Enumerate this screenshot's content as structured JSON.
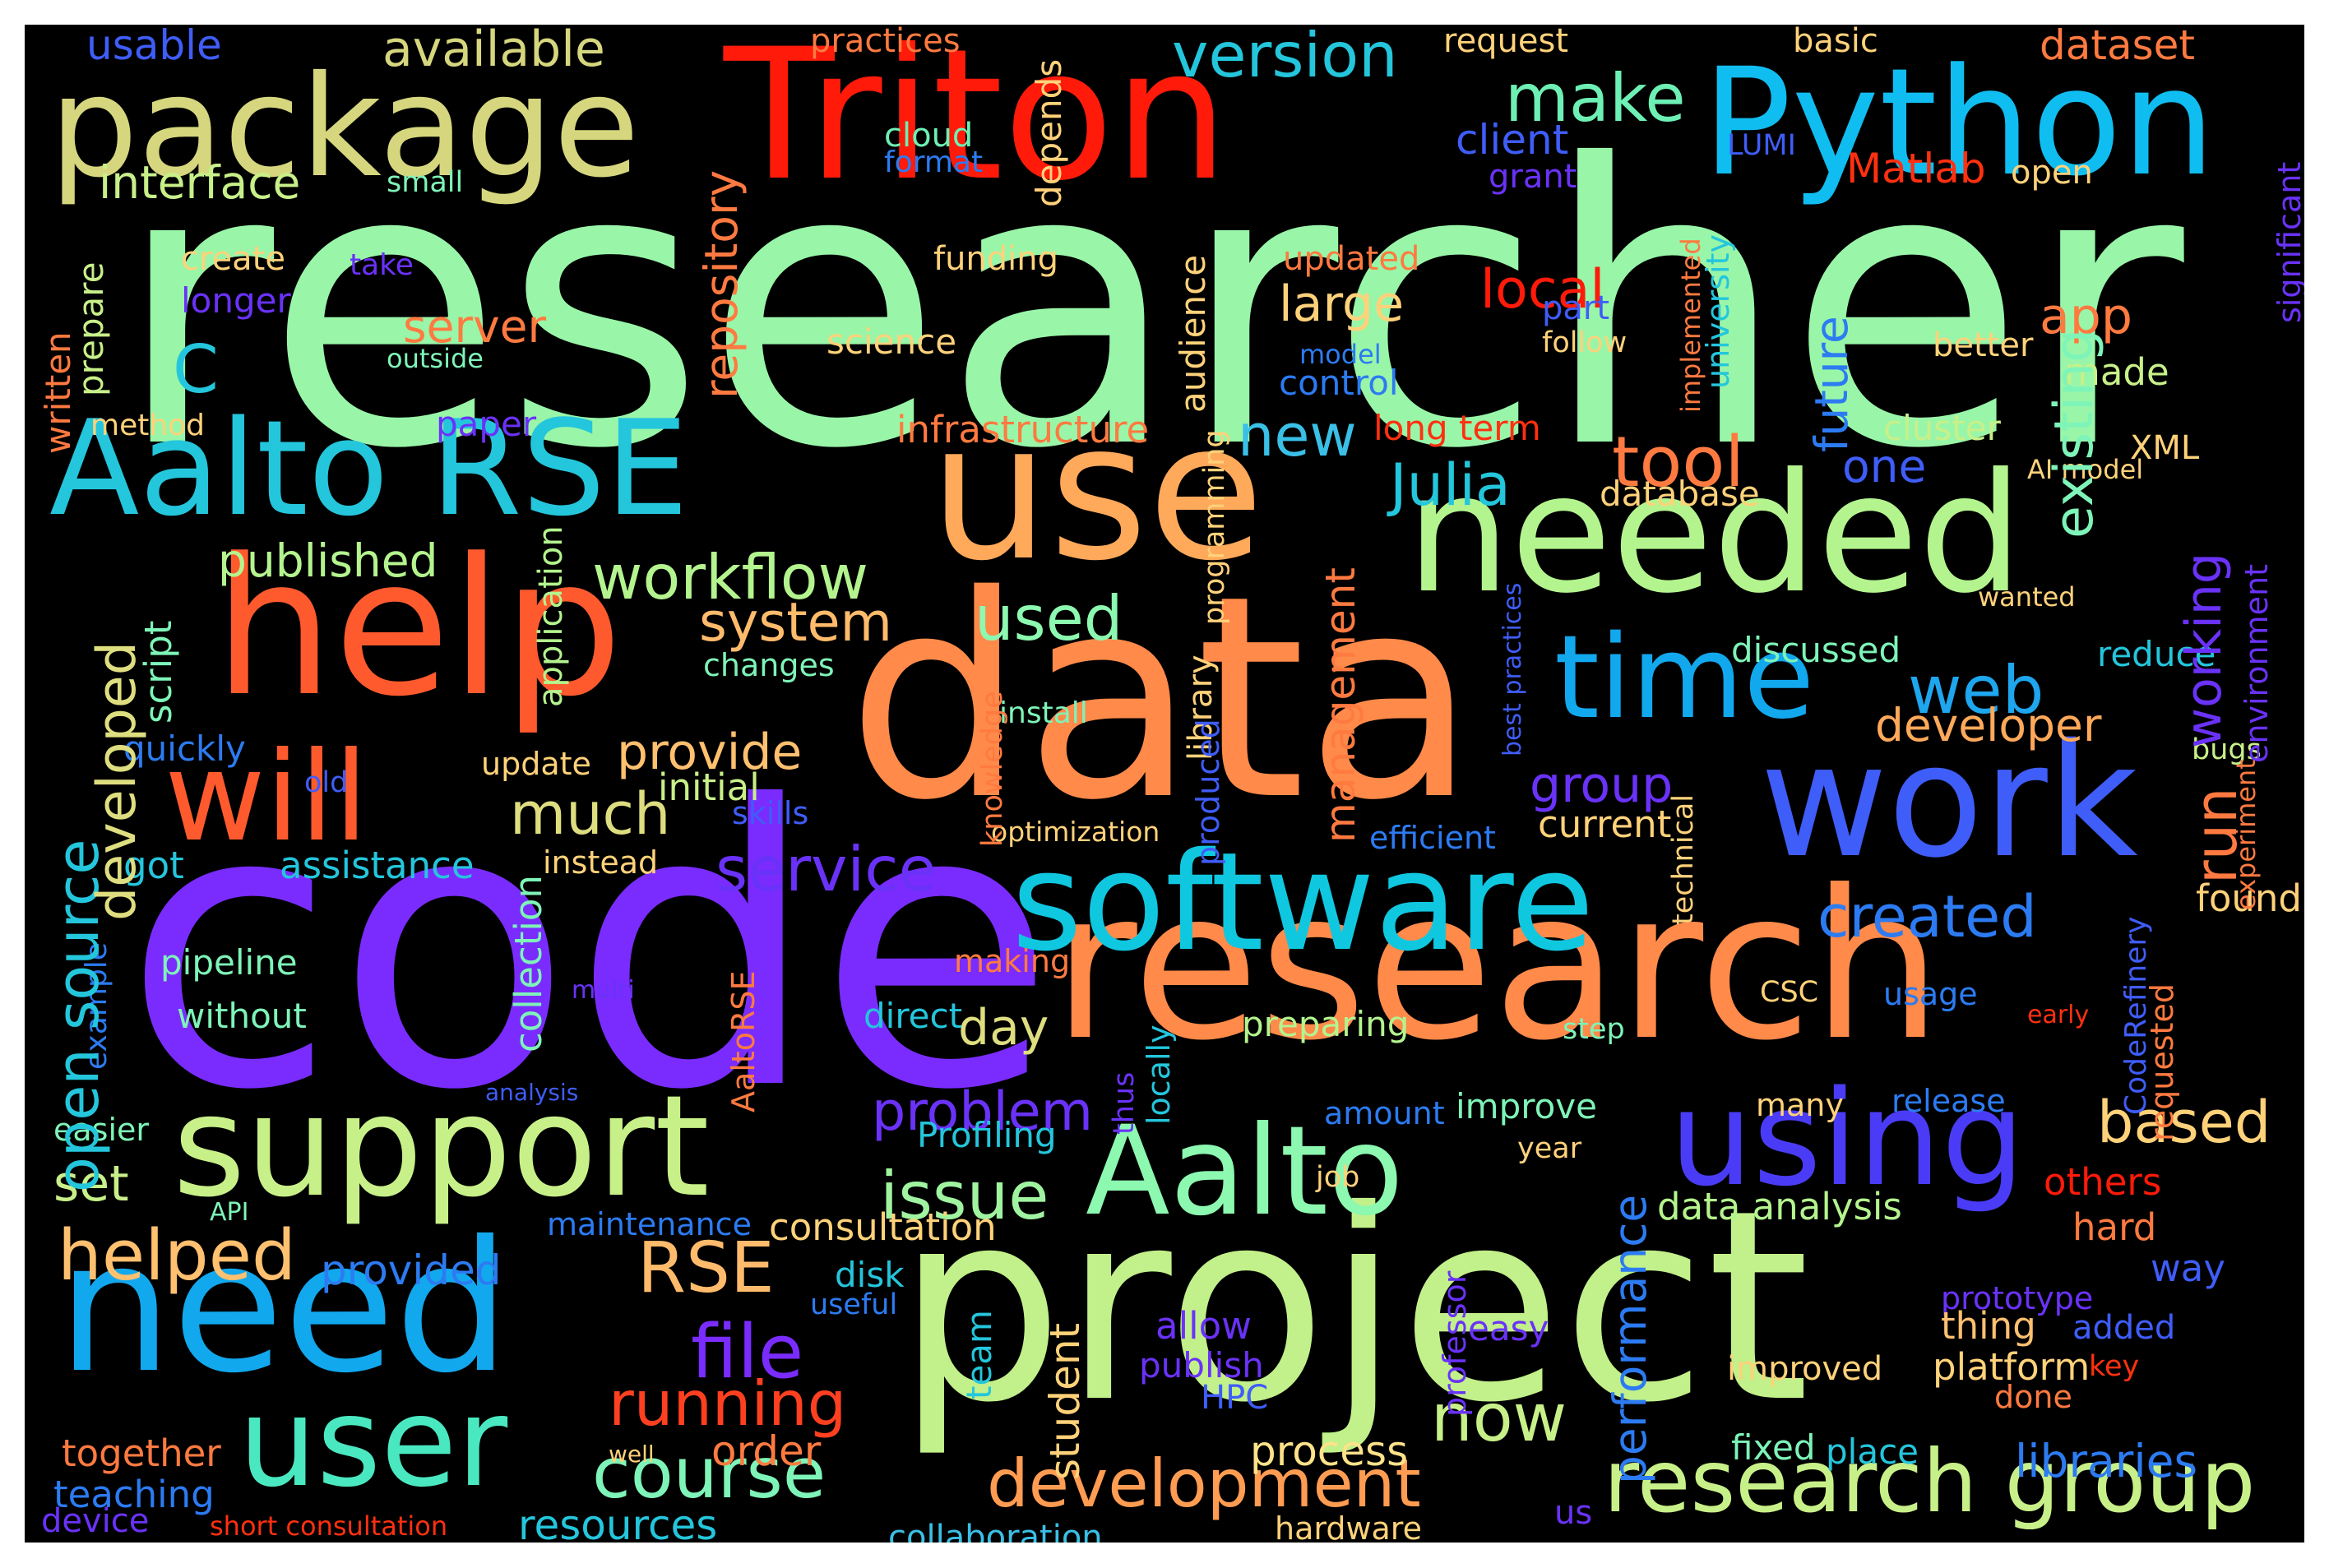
{
  "words": [
    {
      "text": "researcher",
      "color": "#99f6a8"
    },
    {
      "text": "code",
      "color": "#7a2cff"
    },
    {
      "text": "data",
      "color": "#ff8a4a"
    },
    {
      "text": "project",
      "color": "#c2f08a"
    },
    {
      "text": "research",
      "color": "#ff8a4a"
    },
    {
      "text": "Triton",
      "color": "#ff1a0a"
    },
    {
      "text": "Python",
      "color": "#10bdf0"
    },
    {
      "text": "package",
      "color": "#d6d67e"
    },
    {
      "text": "use",
      "color": "#ffa95a"
    },
    {
      "text": "needed",
      "color": "#b4f48e"
    },
    {
      "text": "help",
      "color": "#ff5a2e"
    },
    {
      "text": "support",
      "color": "#c8f089"
    },
    {
      "text": "need",
      "color": "#12a8ee"
    },
    {
      "text": "work",
      "color": "#3f5df8"
    },
    {
      "text": "software",
      "color": "#10c7e0"
    },
    {
      "text": "Aalto RSE",
      "color": "#24c6dc"
    },
    {
      "text": "using",
      "color": "#4a3cf6"
    },
    {
      "text": "Aalto",
      "color": "#8cf8b0"
    },
    {
      "text": "user",
      "color": "#4ae8c0"
    },
    {
      "text": "will",
      "color": "#ff5a2e"
    },
    {
      "text": "time",
      "color": "#12a8ee"
    },
    {
      "text": "research group",
      "color": "#c8f089"
    },
    {
      "text": "development",
      "color": "#ff9c52"
    },
    {
      "text": "course",
      "color": "#7ef4b8"
    },
    {
      "text": "RSE",
      "color": "#ffbb6c"
    },
    {
      "text": "file",
      "color": "#7a2cff"
    },
    {
      "text": "tool",
      "color": "#ff7a40"
    },
    {
      "text": "workflow",
      "color": "#b4f48e"
    },
    {
      "text": "now",
      "color": "#c8f089"
    },
    {
      "text": "version",
      "color": "#24c6dc"
    },
    {
      "text": "make",
      "color": "#6ef0b4"
    },
    {
      "text": "running",
      "color": "#ff4020"
    },
    {
      "text": "service",
      "color": "#6a32f8"
    },
    {
      "text": "system",
      "color": "#ffbb6c"
    },
    {
      "text": "used",
      "color": "#8cf8b0"
    },
    {
      "text": "web",
      "color": "#1ea6ee"
    },
    {
      "text": "problem",
      "color": "#6a32f8"
    },
    {
      "text": "issue",
      "color": "#a0f4a0"
    },
    {
      "text": "helped",
      "color": "#ffc070"
    },
    {
      "text": "much",
      "color": "#dede80"
    },
    {
      "text": "created",
      "color": "#2c7bf2"
    },
    {
      "text": "based",
      "color": "#ffd27a"
    },
    {
      "text": "Julia",
      "color": "#24c6dc"
    },
    {
      "text": "local",
      "color": "#ff1a0a"
    },
    {
      "text": "new",
      "color": "#3ac0e6"
    },
    {
      "text": "available",
      "color": "#d6d67e"
    },
    {
      "text": "interface",
      "color": "#c8f089"
    },
    {
      "text": "published",
      "color": "#b4f48e"
    },
    {
      "text": "provide",
      "color": "#ffc070"
    },
    {
      "text": "group",
      "color": "#6a32f8"
    },
    {
      "text": "developer",
      "color": "#ffa95a"
    },
    {
      "text": "libraries",
      "color": "#2c7bf2"
    },
    {
      "text": "order",
      "color": "#ff7a40"
    },
    {
      "text": "process",
      "color": "#ffe28a"
    },
    {
      "text": "resources",
      "color": "#24c6dc"
    },
    {
      "text": "collaboration",
      "color": "#3ac0e6"
    },
    {
      "text": "consultation",
      "color": "#ffd27a"
    },
    {
      "text": "data analysis",
      "color": "#b4f48e"
    },
    {
      "text": "set",
      "color": "#c8f089"
    },
    {
      "text": "day",
      "color": "#dede80"
    },
    {
      "text": "provided",
      "color": "#2c7bf2"
    },
    {
      "text": "teaching",
      "color": "#2c7bf2"
    },
    {
      "text": "together",
      "color": "#ff7a40"
    },
    {
      "text": "device",
      "color": "#6a32f8"
    },
    {
      "text": "short consultation",
      "color": "#ff3010"
    },
    {
      "text": "usable",
      "color": "#3f5df8"
    },
    {
      "text": "practices",
      "color": "#ff7a40"
    },
    {
      "text": "request",
      "color": "#ffd27a"
    },
    {
      "text": "basic",
      "color": "#ffd27a"
    },
    {
      "text": "dataset",
      "color": "#ff7a40"
    },
    {
      "text": "cloud",
      "color": "#6ef0b4"
    },
    {
      "text": "format",
      "color": "#2c7bf2"
    },
    {
      "text": "client",
      "color": "#3f5df8"
    },
    {
      "text": "grant",
      "color": "#6a32f8"
    },
    {
      "text": "LUMI",
      "color": "#3f5df8"
    },
    {
      "text": "Matlab",
      "color": "#ff3010"
    },
    {
      "text": "open",
      "color": "#ffd27a"
    },
    {
      "text": "small",
      "color": "#7ef4b8"
    },
    {
      "text": "create",
      "color": "#ffd27a"
    },
    {
      "text": "take",
      "color": "#6a32f8"
    },
    {
      "text": "longer",
      "color": "#6a32f8"
    },
    {
      "text": "funding",
      "color": "#ffd27a"
    },
    {
      "text": "updated",
      "color": "#ff7a40"
    },
    {
      "text": "large",
      "color": "#ffd27a"
    },
    {
      "text": "part",
      "color": "#3f5df8"
    },
    {
      "text": "follow",
      "color": "#ffd27a"
    },
    {
      "text": "better",
      "color": "#ffd27a"
    },
    {
      "text": "app",
      "color": "#ff7a40"
    },
    {
      "text": "made",
      "color": "#c8f089"
    },
    {
      "text": "server",
      "color": "#ff7a40"
    },
    {
      "text": "outside",
      "color": "#7ef4b8"
    },
    {
      "text": "science",
      "color": "#ffd27a"
    },
    {
      "text": "model",
      "color": "#2c7bf2"
    },
    {
      "text": "control",
      "color": "#2c7bf2"
    },
    {
      "text": "C",
      "color": "#24c6dc"
    },
    {
      "text": "method",
      "color": "#ffd27a"
    },
    {
      "text": "paper",
      "color": "#6a32f8"
    },
    {
      "text": "infrastructure",
      "color": "#ff7a40"
    },
    {
      "text": "long term",
      "color": "#ff3010"
    },
    {
      "text": "cluster",
      "color": "#c8f089"
    },
    {
      "text": "XML",
      "color": "#ffd27a"
    },
    {
      "text": "AI model",
      "color": "#ffd27a"
    },
    {
      "text": "one",
      "color": "#3f5df8"
    },
    {
      "text": "database",
      "color": "#ffd27a"
    },
    {
      "text": "wanted",
      "color": "#ffd27a"
    },
    {
      "text": "discussed",
      "color": "#7ef4b8"
    },
    {
      "text": "reduce",
      "color": "#24c6dc"
    },
    {
      "text": "changes",
      "color": "#7ef4b8"
    },
    {
      "text": "install",
      "color": "#7ef4b8"
    },
    {
      "text": "quickly",
      "color": "#2c7bf2"
    },
    {
      "text": "old",
      "color": "#3f5df8"
    },
    {
      "text": "update",
      "color": "#ffd27a"
    },
    {
      "text": "initial",
      "color": "#c8f089"
    },
    {
      "text": "skills",
      "color": "#3f5df8"
    },
    {
      "text": "bugs",
      "color": "#c8f089"
    },
    {
      "text": "current",
      "color": "#ffd27a"
    },
    {
      "text": "got",
      "color": "#24c6dc"
    },
    {
      "text": "assistance",
      "color": "#24c6dc"
    },
    {
      "text": "instead",
      "color": "#ffd27a"
    },
    {
      "text": "optimization",
      "color": "#ffd27a"
    },
    {
      "text": "efficient",
      "color": "#2c7bf2"
    },
    {
      "text": "found",
      "color": "#ffd27a"
    },
    {
      "text": "pipeline",
      "color": "#7ef4b8"
    },
    {
      "text": "without",
      "color": "#7ef4b8"
    },
    {
      "text": "multi",
      "color": "#6a32f8"
    },
    {
      "text": "making",
      "color": "#ff7a40"
    },
    {
      "text": "direct",
      "color": "#24c6dc"
    },
    {
      "text": "preparing",
      "color": "#b4f48e"
    },
    {
      "text": "step",
      "color": "#7ef4b8"
    },
    {
      "text": "CSC",
      "color": "#ffd27a"
    },
    {
      "text": "usage",
      "color": "#2c7bf2"
    },
    {
      "text": "early",
      "color": "#ff3010"
    },
    {
      "text": "analysis",
      "color": "#3f5df8"
    },
    {
      "text": "amount",
      "color": "#2c7bf2"
    },
    {
      "text": "improve",
      "color": "#7ef4b8"
    },
    {
      "text": "many",
      "color": "#ffd27a"
    },
    {
      "text": "release",
      "color": "#2c7bf2"
    },
    {
      "text": "easier",
      "color": "#7ef4b8"
    },
    {
      "text": "Profiling",
      "color": "#24c6dc"
    },
    {
      "text": "year",
      "color": "#ffd27a"
    },
    {
      "text": "job",
      "color": "#ffd27a"
    },
    {
      "text": "others",
      "color": "#ff1a0a"
    },
    {
      "text": "API",
      "color": "#7ef4b8"
    },
    {
      "text": "maintenance",
      "color": "#2c7bf2"
    },
    {
      "text": "hard",
      "color": "#ff7a40"
    },
    {
      "text": "disk",
      "color": "#24c6dc"
    },
    {
      "text": "way",
      "color": "#3f5df8"
    },
    {
      "text": "useful",
      "color": "#2c7bf2"
    },
    {
      "text": "prototype",
      "color": "#6a32f8"
    },
    {
      "text": "thing",
      "color": "#ffc070"
    },
    {
      "text": "added",
      "color": "#3f5df8"
    },
    {
      "text": "allow",
      "color": "#6a32f8"
    },
    {
      "text": "easy",
      "color": "#6a32f8"
    },
    {
      "text": "publish",
      "color": "#6a32f8"
    },
    {
      "text": "improved",
      "color": "#ffd27a"
    },
    {
      "text": "platform",
      "color": "#ffd27a"
    },
    {
      "text": "key",
      "color": "#ff3010"
    },
    {
      "text": "HPC",
      "color": "#3f5df8"
    },
    {
      "text": "done",
      "color": "#ff7a40"
    },
    {
      "text": "fixed",
      "color": "#7ef4b8"
    },
    {
      "text": "place",
      "color": "#24c6dc"
    },
    {
      "text": "well",
      "color": "#ffd27a"
    },
    {
      "text": "us",
      "color": "#6a32f8"
    },
    {
      "text": "hardware",
      "color": "#ffd27a"
    },
    {
      "text": "example",
      "color": "#2c7bf2"
    },
    {
      "text": "open source",
      "color": "#24c6dc"
    },
    {
      "text": "developed",
      "color": "#dede80"
    },
    {
      "text": "script",
      "color": "#7ef4b8"
    },
    {
      "text": "written",
      "color": "#ff7a40"
    },
    {
      "text": "prepare",
      "color": "#c8f089"
    },
    {
      "text": "repository",
      "color": "#ff7a40"
    },
    {
      "text": "depends",
      "color": "#ffd27a"
    },
    {
      "text": "audience",
      "color": "#ffd27a"
    },
    {
      "text": "application",
      "color": "#b4f48e"
    },
    {
      "text": "collection",
      "color": "#7ef4b8"
    },
    {
      "text": "AaltoRSE",
      "color": "#ff7a40"
    },
    {
      "text": "knowledge",
      "color": "#ff7a40"
    },
    {
      "text": "library",
      "color": "#ffd27a"
    },
    {
      "text": "programming",
      "color": "#ffd27a"
    },
    {
      "text": "produced",
      "color": "#3f5df8"
    },
    {
      "text": "locally",
      "color": "#24c6dc"
    },
    {
      "text": "thus",
      "color": "#6a32f8"
    },
    {
      "text": "management",
      "color": "#ff7a40"
    },
    {
      "text": "performance",
      "color": "#2c7bf2"
    },
    {
      "text": "student",
      "color": "#ffd27a"
    },
    {
      "text": "team",
      "color": "#24c6dc"
    },
    {
      "text": "professor",
      "color": "#6a32f8"
    },
    {
      "text": "technical",
      "color": "#ffd27a"
    },
    {
      "text": "implemented",
      "color": "#ff7a40"
    },
    {
      "text": "university",
      "color": "#24c6dc"
    },
    {
      "text": "best practices",
      "color": "#3f5df8"
    },
    {
      "text": "future",
      "color": "#2c7bf2"
    },
    {
      "text": "existing",
      "color": "#7ef4b8"
    },
    {
      "text": "working",
      "color": "#6a32f8"
    },
    {
      "text": "run",
      "color": "#ff7a40"
    },
    {
      "text": "CodeRefinery",
      "color": "#3f5df8"
    },
    {
      "text": "requested",
      "color": "#ff7a40"
    },
    {
      "text": "experiment",
      "color": "#ff7a40"
    },
    {
      "text": "environment",
      "color": "#6a32f8"
    },
    {
      "text": "significant",
      "color": "#6a32f8"
    }
  ]
}
